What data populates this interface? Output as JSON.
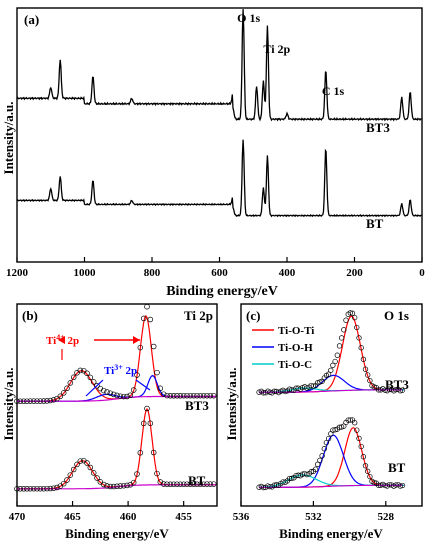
{
  "chart_data": [
    {
      "panel": "(a)",
      "type": "line",
      "xlabel": "Binding energy/eV",
      "ylabel": "Intensity/a.u.",
      "xlim": [
        1200,
        0
      ],
      "x_reversed": true,
      "xticks": [
        1200,
        1000,
        800,
        600,
        400,
        200,
        0
      ],
      "yticks": "none",
      "peak_labels": [
        {
          "text": "O 1s",
          "x": 530
        },
        {
          "text": "Ti 2p",
          "x": 458
        },
        {
          "text": "C 1s",
          "x": 285
        }
      ],
      "series": [
        {
          "name": "BT3",
          "color": "#000000",
          "offset": 1.0,
          "peaks": [
            [
              1200,
              0.0
            ],
            [
              1100,
              0.1
            ],
            [
              1072,
              0.35
            ],
            [
              975,
              0.25
            ],
            [
              860,
              0.05
            ],
            [
              560,
              0.1
            ],
            [
              530,
              1.0
            ],
            [
              490,
              0.3
            ],
            [
              470,
              0.35
            ],
            [
              458,
              0.85
            ],
            [
              400,
              0.05
            ],
            [
              285,
              0.45
            ],
            [
              60,
              0.2
            ],
            [
              35,
              0.25
            ]
          ]
        },
        {
          "name": "BT",
          "color": "#000000",
          "offset": 0.0,
          "peaks": [
            [
              1200,
              0.0
            ],
            [
              1100,
              0.15
            ],
            [
              1072,
              0.3
            ],
            [
              975,
              0.3
            ],
            [
              860,
              0.05
            ],
            [
              560,
              0.1
            ],
            [
              530,
              0.95
            ],
            [
              470,
              0.35
            ],
            [
              458,
              0.75
            ],
            [
              285,
              0.85
            ],
            [
              60,
              0.15
            ],
            [
              35,
              0.2
            ]
          ]
        }
      ]
    },
    {
      "panel": "(b)",
      "title": "Ti 2p",
      "type": "line",
      "xlabel": "Binding energy/eV",
      "ylabel": "Intensity/a.u.",
      "xlim": [
        470,
        452
      ],
      "x_reversed": true,
      "xticks": [
        470,
        465,
        460,
        455
      ],
      "annotations": [
        "Ti4+ 2p",
        "Ti3+ 2p"
      ],
      "series": [
        {
          "name": "BT3",
          "components": [
            {
              "label": "Ti4+",
              "color": "#ff0000",
              "peaks": [
                [
                  464.2,
                  0.32,
                  1.4
                ],
                [
                  458.4,
                  0.85,
                  0.7
                ]
              ]
            },
            {
              "label": "Ti3+",
              "color": "#0000ff",
              "peaks": [
                [
                  462.0,
                  0.06,
                  1.2
                ],
                [
                  457.8,
                  0.22,
                  0.6
                ]
              ]
            },
            {
              "label": "background",
              "color": "#cc00cc"
            },
            {
              "label": "data",
              "marker": "open-circle",
              "color": "#000000"
            }
          ]
        },
        {
          "name": "BT",
          "components": [
            {
              "label": "Ti4+",
              "color": "#ff0000",
              "peaks": [
                [
                  464.1,
                  0.35,
                  1.3
                ],
                [
                  458.3,
                  0.95,
                  0.65
                ]
              ]
            },
            {
              "label": "background",
              "color": "#cc00cc"
            },
            {
              "label": "data",
              "marker": "open-circle",
              "color": "#000000"
            }
          ]
        }
      ]
    },
    {
      "panel": "(c)",
      "title": "O 1s",
      "type": "line",
      "xlabel": "Binding energy/eV",
      "ylabel": "Intensity/a.u.",
      "xlim": [
        536,
        526
      ],
      "x_reversed": true,
      "xticks": [
        536,
        532,
        528
      ],
      "legend": [
        {
          "label": "Ti-O-Ti",
          "color": "#ff0000"
        },
        {
          "label": "Ti-O-H",
          "color": "#0000ff"
        },
        {
          "label": "Ti-O-C",
          "color": "#00cccc"
        }
      ],
      "legend_position": "top-left",
      "series": [
        {
          "name": "BT3",
          "components": [
            {
              "label": "Ti-O-Ti",
              "color": "#ff0000",
              "center": 529.9,
              "height": 0.95,
              "width": 0.9
            },
            {
              "label": "Ti-O-H",
              "color": "#0000ff",
              "center": 530.9,
              "height": 0.2,
              "width": 1.1
            },
            {
              "label": "Ti-O-C",
              "color": "#00cccc",
              "center": 532.5,
              "height": 0.05,
              "width": 1.3
            }
          ]
        },
        {
          "name": "BT",
          "components": [
            {
              "label": "Ti-O-Ti",
              "color": "#ff0000",
              "center": 529.8,
              "height": 0.85,
              "width": 0.85
            },
            {
              "label": "Ti-O-H",
              "color": "#0000ff",
              "center": 530.9,
              "height": 0.75,
              "width": 1.0
            },
            {
              "label": "Ti-O-C",
              "color": "#00cccc",
              "center": 532.6,
              "height": 0.18,
              "width": 1.4
            }
          ]
        }
      ]
    }
  ]
}
